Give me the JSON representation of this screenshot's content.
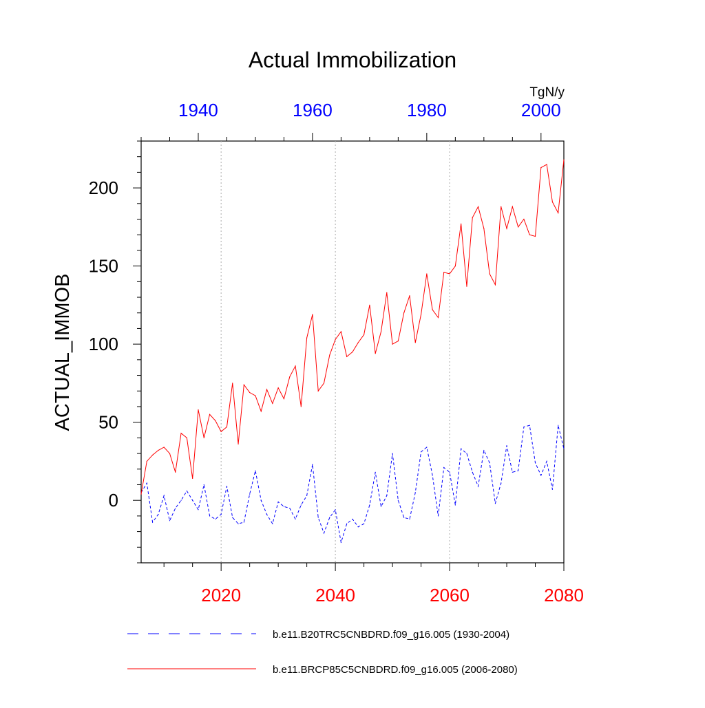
{
  "chart_data": {
    "type": "line",
    "title": "Actual Immobilization",
    "units": "TgN/y",
    "ylabel": "ACTUAL_IMMOB",
    "ylim": [
      -40,
      230
    ],
    "yticks": [
      0,
      50,
      100,
      150,
      200
    ],
    "y_minor_step": 10,
    "bottom_axis": {
      "color": "#ff0000",
      "range": [
        2006,
        2080
      ],
      "ticks": [
        2020,
        2040,
        2060,
        2080
      ],
      "tick_labels": [
        "2020",
        "2040",
        "2060",
        "2080"
      ],
      "minor_step": 5
    },
    "top_axis": {
      "color": "#0000ff",
      "range": [
        1930,
        2004
      ],
      "ticks": [
        1940,
        1960,
        1980,
        2000
      ],
      "tick_labels": [
        "1940",
        "1960",
        "1980",
        "2000"
      ],
      "minor_step": 5
    },
    "grid": "vertical dotted at major ticks",
    "series": [
      {
        "name": "b.e11.B20TRC5CNBDRD.f09_g16.005 (1930-2004)",
        "axis": "top",
        "color": "#0000ff",
        "dash": "dashed",
        "x_start": 1930,
        "values": [
          5,
          11,
          -14,
          -9,
          3,
          -13,
          -5,
          0,
          6,
          0,
          -6,
          10,
          -10,
          -12,
          -9,
          9,
          -11,
          -15,
          -14,
          4,
          19,
          0,
          -9,
          -15,
          -1,
          -4,
          -5,
          -12,
          -3,
          3,
          23,
          -11,
          -21,
          -11,
          -6,
          -27,
          -15,
          -12,
          -17,
          -15,
          -3,
          18,
          -4,
          3,
          30,
          0,
          -11,
          -12,
          5,
          31,
          34,
          16,
          -10,
          21,
          18,
          -3,
          33,
          30,
          18,
          9,
          32,
          24,
          -2,
          11,
          35,
          18,
          19,
          47,
          48,
          24,
          16,
          25,
          7,
          48,
          33
        ]
      },
      {
        "name": "b.e11.BRCP85C5CNBDRD.f09_g16.005 (2006-2080)",
        "axis": "bottom",
        "color": "#ff0000",
        "dash": "solid",
        "x_start": 2006,
        "values": [
          4,
          25,
          29,
          32,
          34,
          30,
          18,
          43,
          40,
          14,
          58,
          40,
          55,
          51,
          44,
          47,
          75,
          36,
          74,
          69,
          67,
          57,
          71,
          62,
          72,
          65,
          79,
          86,
          60,
          104,
          119,
          70,
          75,
          93,
          103,
          108,
          92,
          95,
          101,
          106,
          125,
          94,
          108,
          133,
          100,
          102,
          120,
          131,
          101,
          119,
          145,
          122,
          117,
          146,
          145,
          150,
          177,
          137,
          181,
          188,
          174,
          145,
          138,
          188,
          174,
          188,
          175,
          180,
          170,
          169,
          213,
          215,
          191,
          184,
          218
        ]
      }
    ]
  }
}
